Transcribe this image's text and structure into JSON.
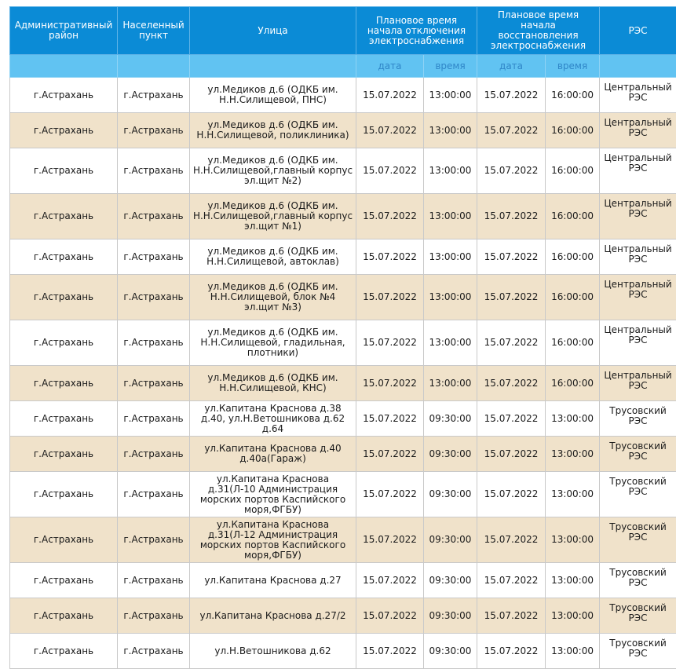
{
  "header": {
    "district": "Административный район",
    "locality": "Населенный пункт",
    "street": "Улица",
    "off_time": "Плановое время начала отключения электроснабжения",
    "restore_time": "Плановое время начала восстановления электроснабжения",
    "res": "РЭС",
    "date": "дата",
    "time": "время"
  },
  "rows": [
    {
      "district": "г.Астрахань",
      "locality": "г.Астрахань",
      "street": "ул.Медиков д.6 (ОДКБ им. Н.Н.Силищевой, ПНС)",
      "off_date": "15.07.2022",
      "off_time": "13:00:00",
      "on_date": "15.07.2022",
      "on_time": "16:00:00",
      "res": "Центральный РЭС"
    },
    {
      "district": "г.Астрахань",
      "locality": "г.Астрахань",
      "street": "ул.Медиков д.6 (ОДКБ им. Н.Н.Силищевой, поликлиника)",
      "off_date": "15.07.2022",
      "off_time": "13:00:00",
      "on_date": "15.07.2022",
      "on_time": "16:00:00",
      "res": "Центральный РЭС"
    },
    {
      "district": "г.Астрахань",
      "locality": "г.Астрахань",
      "street": "ул.Медиков д.6 (ОДКБ им. Н.Н.Силищевой,главный корпус эл.щит №2)",
      "off_date": "15.07.2022",
      "off_time": "13:00:00",
      "on_date": "15.07.2022",
      "on_time": "16:00:00",
      "res": "Центральный РЭС"
    },
    {
      "district": "г.Астрахань",
      "locality": "г.Астрахань",
      "street": "ул.Медиков д.6 (ОДКБ им. Н.Н.Силищевой,главный корпус эл.щит №1)",
      "off_date": "15.07.2022",
      "off_time": "13:00:00",
      "on_date": "15.07.2022",
      "on_time": "16:00:00",
      "res": "Центральный РЭС"
    },
    {
      "district": "г.Астрахань",
      "locality": "г.Астрахань",
      "street": "ул.Медиков д.6 (ОДКБ им. Н.Н.Силищевой, автоклав)",
      "off_date": "15.07.2022",
      "off_time": "13:00:00",
      "on_date": "15.07.2022",
      "on_time": "16:00:00",
      "res": "Центральный РЭС"
    },
    {
      "district": "г.Астрахань",
      "locality": "г.Астрахань",
      "street": "ул.Медиков д.6 (ОДКБ им. Н.Н.Силищевой, блок №4 эл.щит №3)",
      "off_date": "15.07.2022",
      "off_time": "13:00:00",
      "on_date": "15.07.2022",
      "on_time": "16:00:00",
      "res": "Центральный РЭС"
    },
    {
      "district": "г.Астрахань",
      "locality": "г.Астрахань",
      "street": "ул.Медиков д.6 (ОДКБ им. Н.Н.Силищевой, гладильная, плотники)",
      "off_date": "15.07.2022",
      "off_time": "13:00:00",
      "on_date": "15.07.2022",
      "on_time": "16:00:00",
      "res": "Центральный РЭС"
    },
    {
      "district": "г.Астрахань",
      "locality": "г.Астрахань",
      "street": "ул.Медиков д.6 (ОДКБ им. Н.Н.Силищевой, КНС)",
      "off_date": "15.07.2022",
      "off_time": "13:00:00",
      "on_date": "15.07.2022",
      "on_time": "16:00:00",
      "res": "Центральный РЭС"
    },
    {
      "district": "г.Астрахань",
      "locality": "г.Астрахань",
      "street": "ул.Капитана Краснова д.38 д.40, ул.Н.Ветошникова д.62 д.64",
      "off_date": "15.07.2022",
      "off_time": "09:30:00",
      "on_date": "15.07.2022",
      "on_time": "13:00:00",
      "res": "Трусовский РЭС"
    },
    {
      "district": "г.Астрахань",
      "locality": "г.Астрахань",
      "street": "ул.Капитана Краснова д.40 д.40а(Гараж)",
      "off_date": "15.07.2022",
      "off_time": "09:30:00",
      "on_date": "15.07.2022",
      "on_time": "13:00:00",
      "res": "Трусовский РЭС"
    },
    {
      "district": "г.Астрахань",
      "locality": "г.Астрахань",
      "street": "ул.Капитана Краснова д.31(Л-10 Администрация морских портов Каспийского моря,ФГБУ)",
      "off_date": "15.07.2022",
      "off_time": "09:30:00",
      "on_date": "15.07.2022",
      "on_time": "13:00:00",
      "res": "Трусовский РЭС"
    },
    {
      "district": "г.Астрахань",
      "locality": "г.Астрахань",
      "street": "ул.Капитана Краснова д.31(Л-12 Администрация морских портов Каспийского моря,ФГБУ)",
      "off_date": "15.07.2022",
      "off_time": "09:30:00",
      "on_date": "15.07.2022",
      "on_time": "13:00:00",
      "res": "Трусовский РЭС"
    },
    {
      "district": "г.Астрахань",
      "locality": "г.Астрахань",
      "street": "ул.Капитана Краснова д.27",
      "off_date": "15.07.2022",
      "off_time": "09:30:00",
      "on_date": "15.07.2022",
      "on_time": "13:00:00",
      "res": "Трусовский РЭС"
    },
    {
      "district": "г.Астрахань",
      "locality": "г.Астрахань",
      "street": "ул.Капитана Краснова д.27/2",
      "off_date": "15.07.2022",
      "off_time": "09:30:00",
      "on_date": "15.07.2022",
      "on_time": "13:00:00",
      "res": "Трусовский РЭС"
    },
    {
      "district": "г.Астрахань",
      "locality": "г.Астрахань",
      "street": "ул.Н.Ветошникова д.62",
      "off_date": "15.07.2022",
      "off_time": "09:30:00",
      "on_date": "15.07.2022",
      "on_time": "13:00:00",
      "res": "Трусовский РЭС"
    }
  ]
}
